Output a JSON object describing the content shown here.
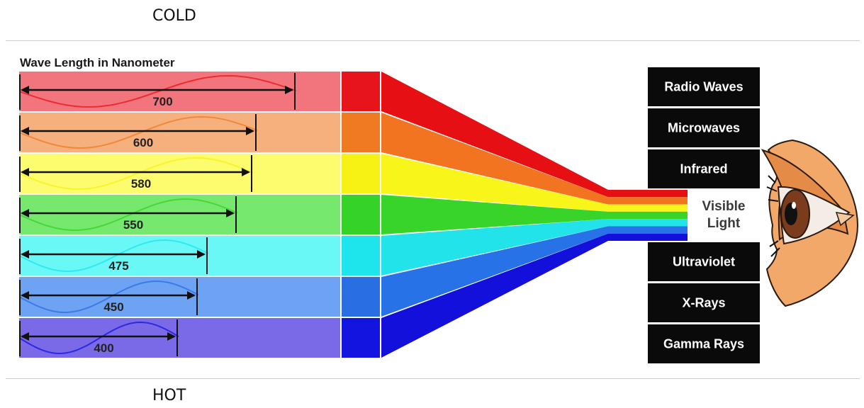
{
  "header": {
    "cold_label": "COLD"
  },
  "footer": {
    "hot_label": "HOT"
  },
  "diagram": {
    "title": "Wave Length in Nanometer",
    "bands": [
      {
        "wavelength": "700",
        "light": "#f2747c",
        "mid": "#e8141c",
        "ray": "#e60f14"
      },
      {
        "wavelength": "600",
        "light": "#f6b07e",
        "mid": "#f07a22",
        "ray": "#f27420"
      },
      {
        "wavelength": "580",
        "light": "#fdfb6e",
        "mid": "#f7f214",
        "ray": "#f8f51a"
      },
      {
        "wavelength": "550",
        "light": "#76e86e",
        "mid": "#35d228",
        "ray": "#38d42a"
      },
      {
        "wavelength": "475",
        "light": "#6af8f6",
        "mid": "#1ee4ec",
        "ray": "#22e2ea"
      },
      {
        "wavelength": "450",
        "light": "#6ea2f2",
        "mid": "#2a6ee4",
        "ray": "#2872e8"
      },
      {
        "wavelength": "400",
        "light": "#7a6ae8",
        "mid": "#1414e0",
        "ray": "#1410dc"
      }
    ],
    "spectrum": {
      "above": [
        "Radio Waves",
        "Microwaves",
        "Infrared"
      ],
      "visible": [
        "Visible",
        "Light"
      ],
      "below": [
        "Ultraviolet",
        "X-Rays",
        "Gamma Rays"
      ]
    }
  }
}
